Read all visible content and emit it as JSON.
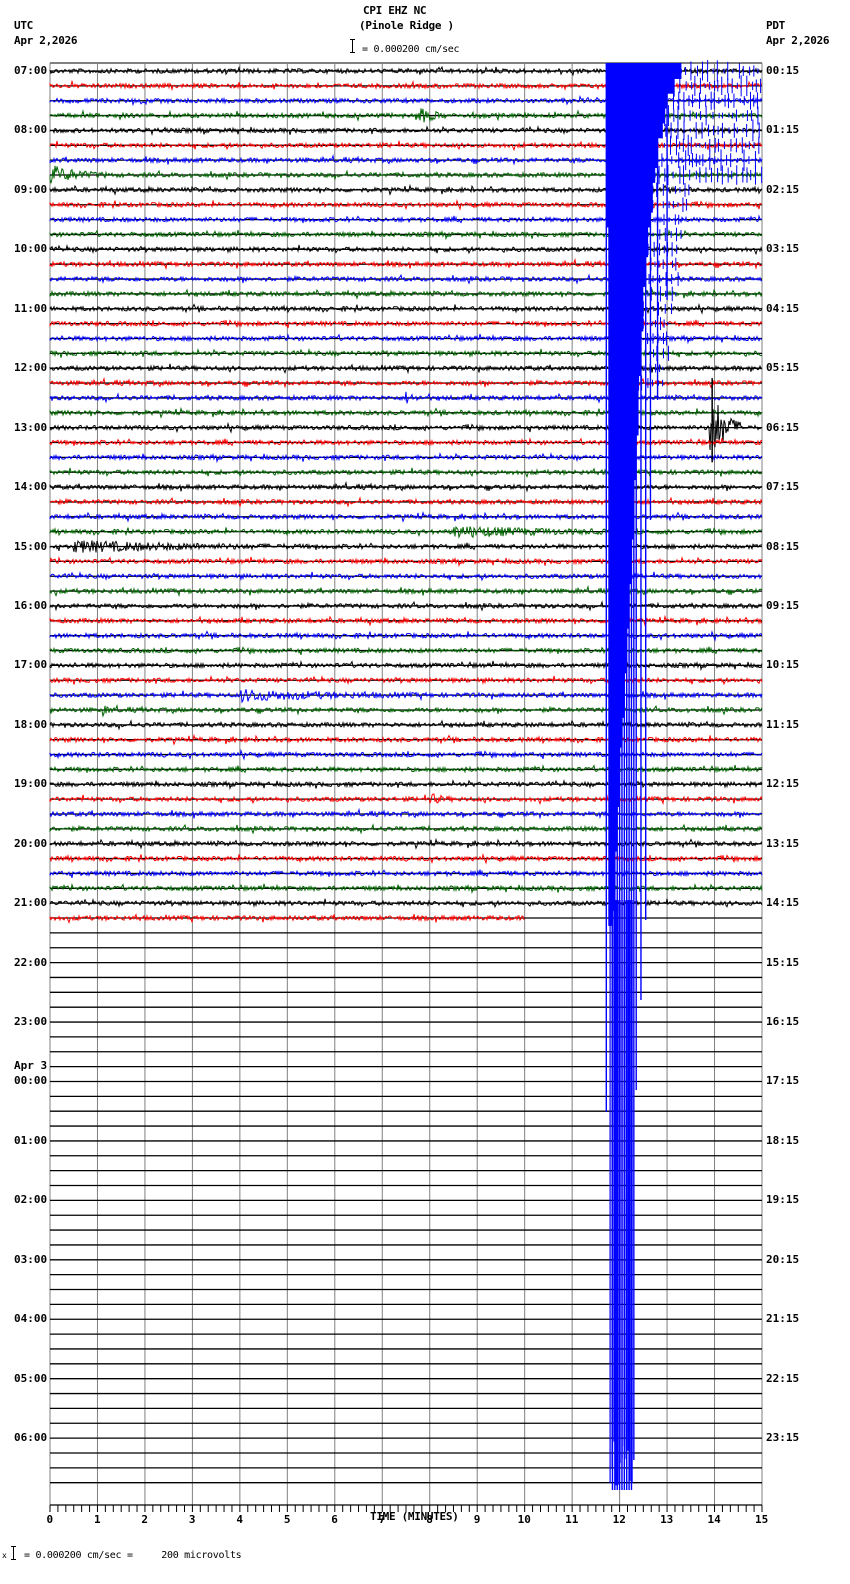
{
  "header": {
    "station": "CPI EHZ NC",
    "location": "(Pinole Ridge )",
    "scale_text": "= 0.000200 cm/sec",
    "left_tz": "UTC",
    "left_date": "Apr 2,2026",
    "right_tz": "PDT",
    "right_date": "Apr 2,2026"
  },
  "footer": {
    "scale_text": "= 0.000200 cm/sec =     200 microvolts",
    "scale_prefix": "x"
  },
  "chart_data": {
    "type": "line",
    "title": "CPI EHZ NC (Pinole Ridge )",
    "xlabel": "TIME (MINUTES)",
    "ylabel": "",
    "xlim": [
      0,
      15
    ],
    "x_ticks": [
      0,
      1,
      2,
      3,
      4,
      5,
      6,
      7,
      8,
      9,
      10,
      11,
      12,
      13,
      14,
      15
    ],
    "minor_tick_seconds": 10,
    "grid": true,
    "traces_per_hour": 4,
    "trace_colors": [
      "#000000",
      "#ff0000",
      "#0000ff",
      "#006400"
    ],
    "grid_color": "#808080",
    "utc_labels": [
      "07:00",
      "08:00",
      "09:00",
      "10:00",
      "11:00",
      "12:00",
      "13:00",
      "14:00",
      "15:00",
      "16:00",
      "17:00",
      "18:00",
      "19:00",
      "20:00",
      "21:00",
      "22:00",
      "23:00",
      "00:00",
      "01:00",
      "02:00",
      "03:00",
      "04:00",
      "05:00",
      "06:00"
    ],
    "utc_date_change": {
      "label": "Apr 3",
      "before_hour_index": 17
    },
    "pdt_labels": [
      "00:15",
      "01:15",
      "02:15",
      "03:15",
      "04:15",
      "05:15",
      "06:15",
      "07:15",
      "08:15",
      "09:15",
      "10:15",
      "11:15",
      "12:15",
      "13:15",
      "14:15",
      "15:15",
      "16:15",
      "17:15",
      "18:15",
      "19:15",
      "20:15",
      "21:15",
      "22:15",
      "23:15"
    ],
    "data_end": {
      "row": 57,
      "minute": 10.0
    },
    "events": [
      {
        "row": 3,
        "start_min": 7.7,
        "end_min": 8.4,
        "amp": 9,
        "note": "local event 07:45 UTC"
      },
      {
        "row": 7,
        "start_min": 0.0,
        "end_min": 1.2,
        "amp": 9,
        "note": "noise burst 08:45 UTC"
      },
      {
        "row": 22,
        "start_min": 7.5,
        "end_min": 7.9,
        "amp": 5
      },
      {
        "row": 24,
        "start_min": 13.9,
        "end_min": 14.6,
        "amp": 40,
        "note": "spike ~13:00 UTC at 14 min"
      },
      {
        "row": 31,
        "start_min": 8.5,
        "end_min": 12.5,
        "amp": 5
      },
      {
        "row": 32,
        "start_min": 0.5,
        "end_min": 5.5,
        "amp": 5
      },
      {
        "row": 42,
        "start_min": 4.0,
        "end_min": 8.0,
        "amp": 5
      },
      {
        "row": 43,
        "start_min": 1.1,
        "end_min": 1.4,
        "amp": 5
      },
      {
        "row": 49,
        "start_min": 8.0,
        "end_min": 8.5,
        "amp": 5
      }
    ],
    "teleseism": {
      "color": "#0000ff",
      "start_min": 11.72,
      "saturated_end_min": 13.3,
      "coda_extends_to_min": 15.0,
      "first_row": 0,
      "description": "Large saturated blue signal beginning ~11.7 min on 07:00 row, with vertical clipped lines extending through bottom of plot near 11.8–12.4 min"
    },
    "series": [
      {
        "name": "trace rows",
        "values": []
      }
    ]
  }
}
